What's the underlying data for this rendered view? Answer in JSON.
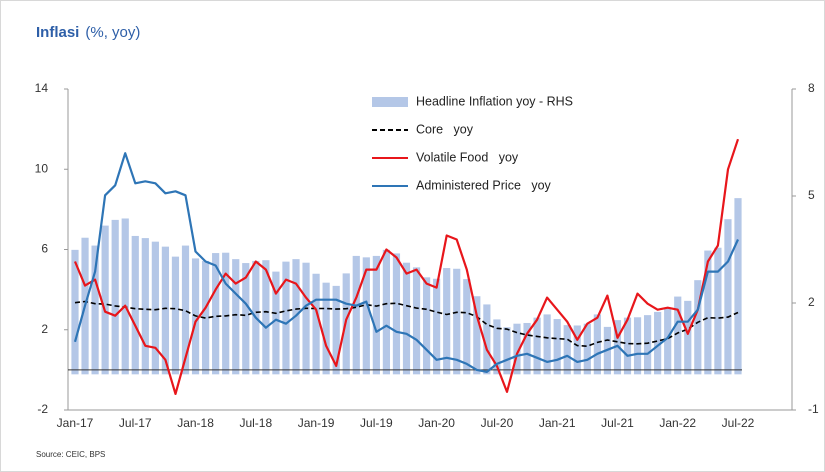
{
  "chart_data": {
    "type": "combo",
    "title": "Inflasi",
    "subtitle": "(%, yoy)",
    "source": "Source: CEIC, BPS",
    "categories": [
      "Jan-17",
      null,
      null,
      null,
      null,
      null,
      "Jul-17",
      null,
      null,
      null,
      null,
      null,
      "Jan-18",
      null,
      null,
      null,
      null,
      null,
      "Jul-18",
      null,
      null,
      null,
      null,
      null,
      "Jan-19",
      null,
      null,
      null,
      null,
      null,
      "Jul-19",
      null,
      null,
      null,
      null,
      null,
      "Jan-20",
      null,
      null,
      null,
      null,
      null,
      "Jul-20",
      null,
      null,
      null,
      null,
      null,
      "Jan-21",
      null,
      null,
      null,
      null,
      null,
      "Jul-21",
      null,
      null,
      null,
      null,
      null,
      "Jan-22",
      null,
      null,
      null,
      null,
      null,
      "Jul-22"
    ],
    "ylim": [
      -2,
      14
    ],
    "yticks": [
      -2,
      2,
      6,
      10,
      14
    ],
    "y2lim": [
      -1,
      8
    ],
    "y2ticks": [
      -1,
      2,
      5,
      8
    ],
    "series": [
      {
        "name": "Headline Inflation yoy - RHS",
        "type": "bar",
        "axis": "y2",
        "color": "#b4c7e7",
        "values": [
          3.49,
          3.83,
          3.61,
          4.17,
          4.33,
          4.37,
          3.88,
          3.82,
          3.72,
          3.58,
          3.3,
          3.61,
          3.25,
          3.18,
          3.4,
          3.41,
          3.23,
          3.12,
          3.18,
          3.2,
          2.88,
          3.16,
          3.23,
          3.13,
          2.82,
          2.57,
          2.48,
          2.83,
          3.32,
          3.28,
          3.32,
          3.49,
          3.39,
          3.13,
          3.0,
          2.72,
          2.68,
          2.98,
          2.96,
          2.67,
          2.19,
          1.96,
          1.54,
          1.32,
          1.42,
          1.44,
          1.59,
          1.68,
          1.55,
          1.38,
          1.37,
          1.42,
          1.68,
          1.33,
          1.52,
          1.59,
          1.6,
          1.66,
          1.75,
          1.87,
          2.18,
          2.06,
          2.64,
          3.47,
          3.55,
          4.35,
          4.94
        ]
      },
      {
        "name": "Core   yoy",
        "type": "line",
        "style": "dashed",
        "color": "#000000",
        "values": [
          3.35,
          3.41,
          3.3,
          3.28,
          3.19,
          3.13,
          3.05,
          3.02,
          3.0,
          3.07,
          3.05,
          2.95,
          2.69,
          2.58,
          2.67,
          2.69,
          2.75,
          2.72,
          2.87,
          2.9,
          2.82,
          2.94,
          3.03,
          3.07,
          3.06,
          3.06,
          3.03,
          3.05,
          3.12,
          3.25,
          3.18,
          3.3,
          3.32,
          3.2,
          3.08,
          3.02,
          2.88,
          2.76,
          2.87,
          2.85,
          2.65,
          2.26,
          2.07,
          2.03,
          1.86,
          1.74,
          1.67,
          1.6,
          1.56,
          1.53,
          1.21,
          1.18,
          1.37,
          1.49,
          1.4,
          1.31,
          1.3,
          1.33,
          1.44,
          1.56,
          1.84,
          2.03,
          2.37,
          2.6,
          2.58,
          2.63,
          2.86
        ]
      },
      {
        "name": "Volatile Food   yoy",
        "type": "line",
        "color": "#e8161b",
        "values": [
          5.4,
          4.2,
          4.5,
          2.9,
          2.7,
          3.2,
          2.2,
          1.2,
          1.1,
          0.5,
          -1.2,
          0.6,
          2.4,
          3.1,
          4.0,
          4.8,
          4.3,
          4.6,
          5.4,
          5.0,
          3.8,
          4.5,
          4.3,
          3.6,
          3.0,
          1.2,
          0.2,
          2.5,
          3.6,
          5.0,
          5.0,
          6.0,
          5.6,
          4.8,
          5.0,
          4.3,
          4.1,
          6.7,
          6.5,
          5.0,
          2.7,
          1.0,
          0.2,
          -1.1,
          0.8,
          1.8,
          2.5,
          3.6,
          3.0,
          2.4,
          1.5,
          2.3,
          2.6,
          3.7,
          1.6,
          2.5,
          3.8,
          3.3,
          3.0,
          3.1,
          3.0,
          1.8,
          3.0,
          5.4,
          6.2,
          10.0,
          11.5
        ]
      },
      {
        "name": "Administered Price   yoy",
        "type": "line",
        "color": "#2e75b6",
        "values": [
          1.4,
          3.2,
          4.9,
          8.7,
          9.2,
          10.8,
          9.3,
          9.4,
          9.3,
          8.8,
          8.9,
          8.7,
          5.9,
          5.4,
          5.2,
          4.3,
          3.8,
          3.3,
          2.6,
          2.1,
          2.5,
          2.3,
          2.7,
          3.2,
          3.5,
          3.5,
          3.5,
          3.3,
          3.2,
          3.4,
          1.9,
          2.2,
          1.9,
          1.8,
          1.5,
          1.0,
          0.5,
          0.6,
          0.5,
          0.3,
          0.0,
          -0.1,
          0.3,
          0.5,
          0.7,
          0.8,
          0.6,
          0.4,
          0.5,
          0.7,
          0.4,
          0.5,
          0.8,
          1.0,
          1.2,
          0.7,
          0.8,
          0.8,
          1.2,
          1.6,
          2.4,
          2.4,
          3.0,
          4.9,
          4.9,
          5.4,
          6.5
        ]
      }
    ]
  }
}
